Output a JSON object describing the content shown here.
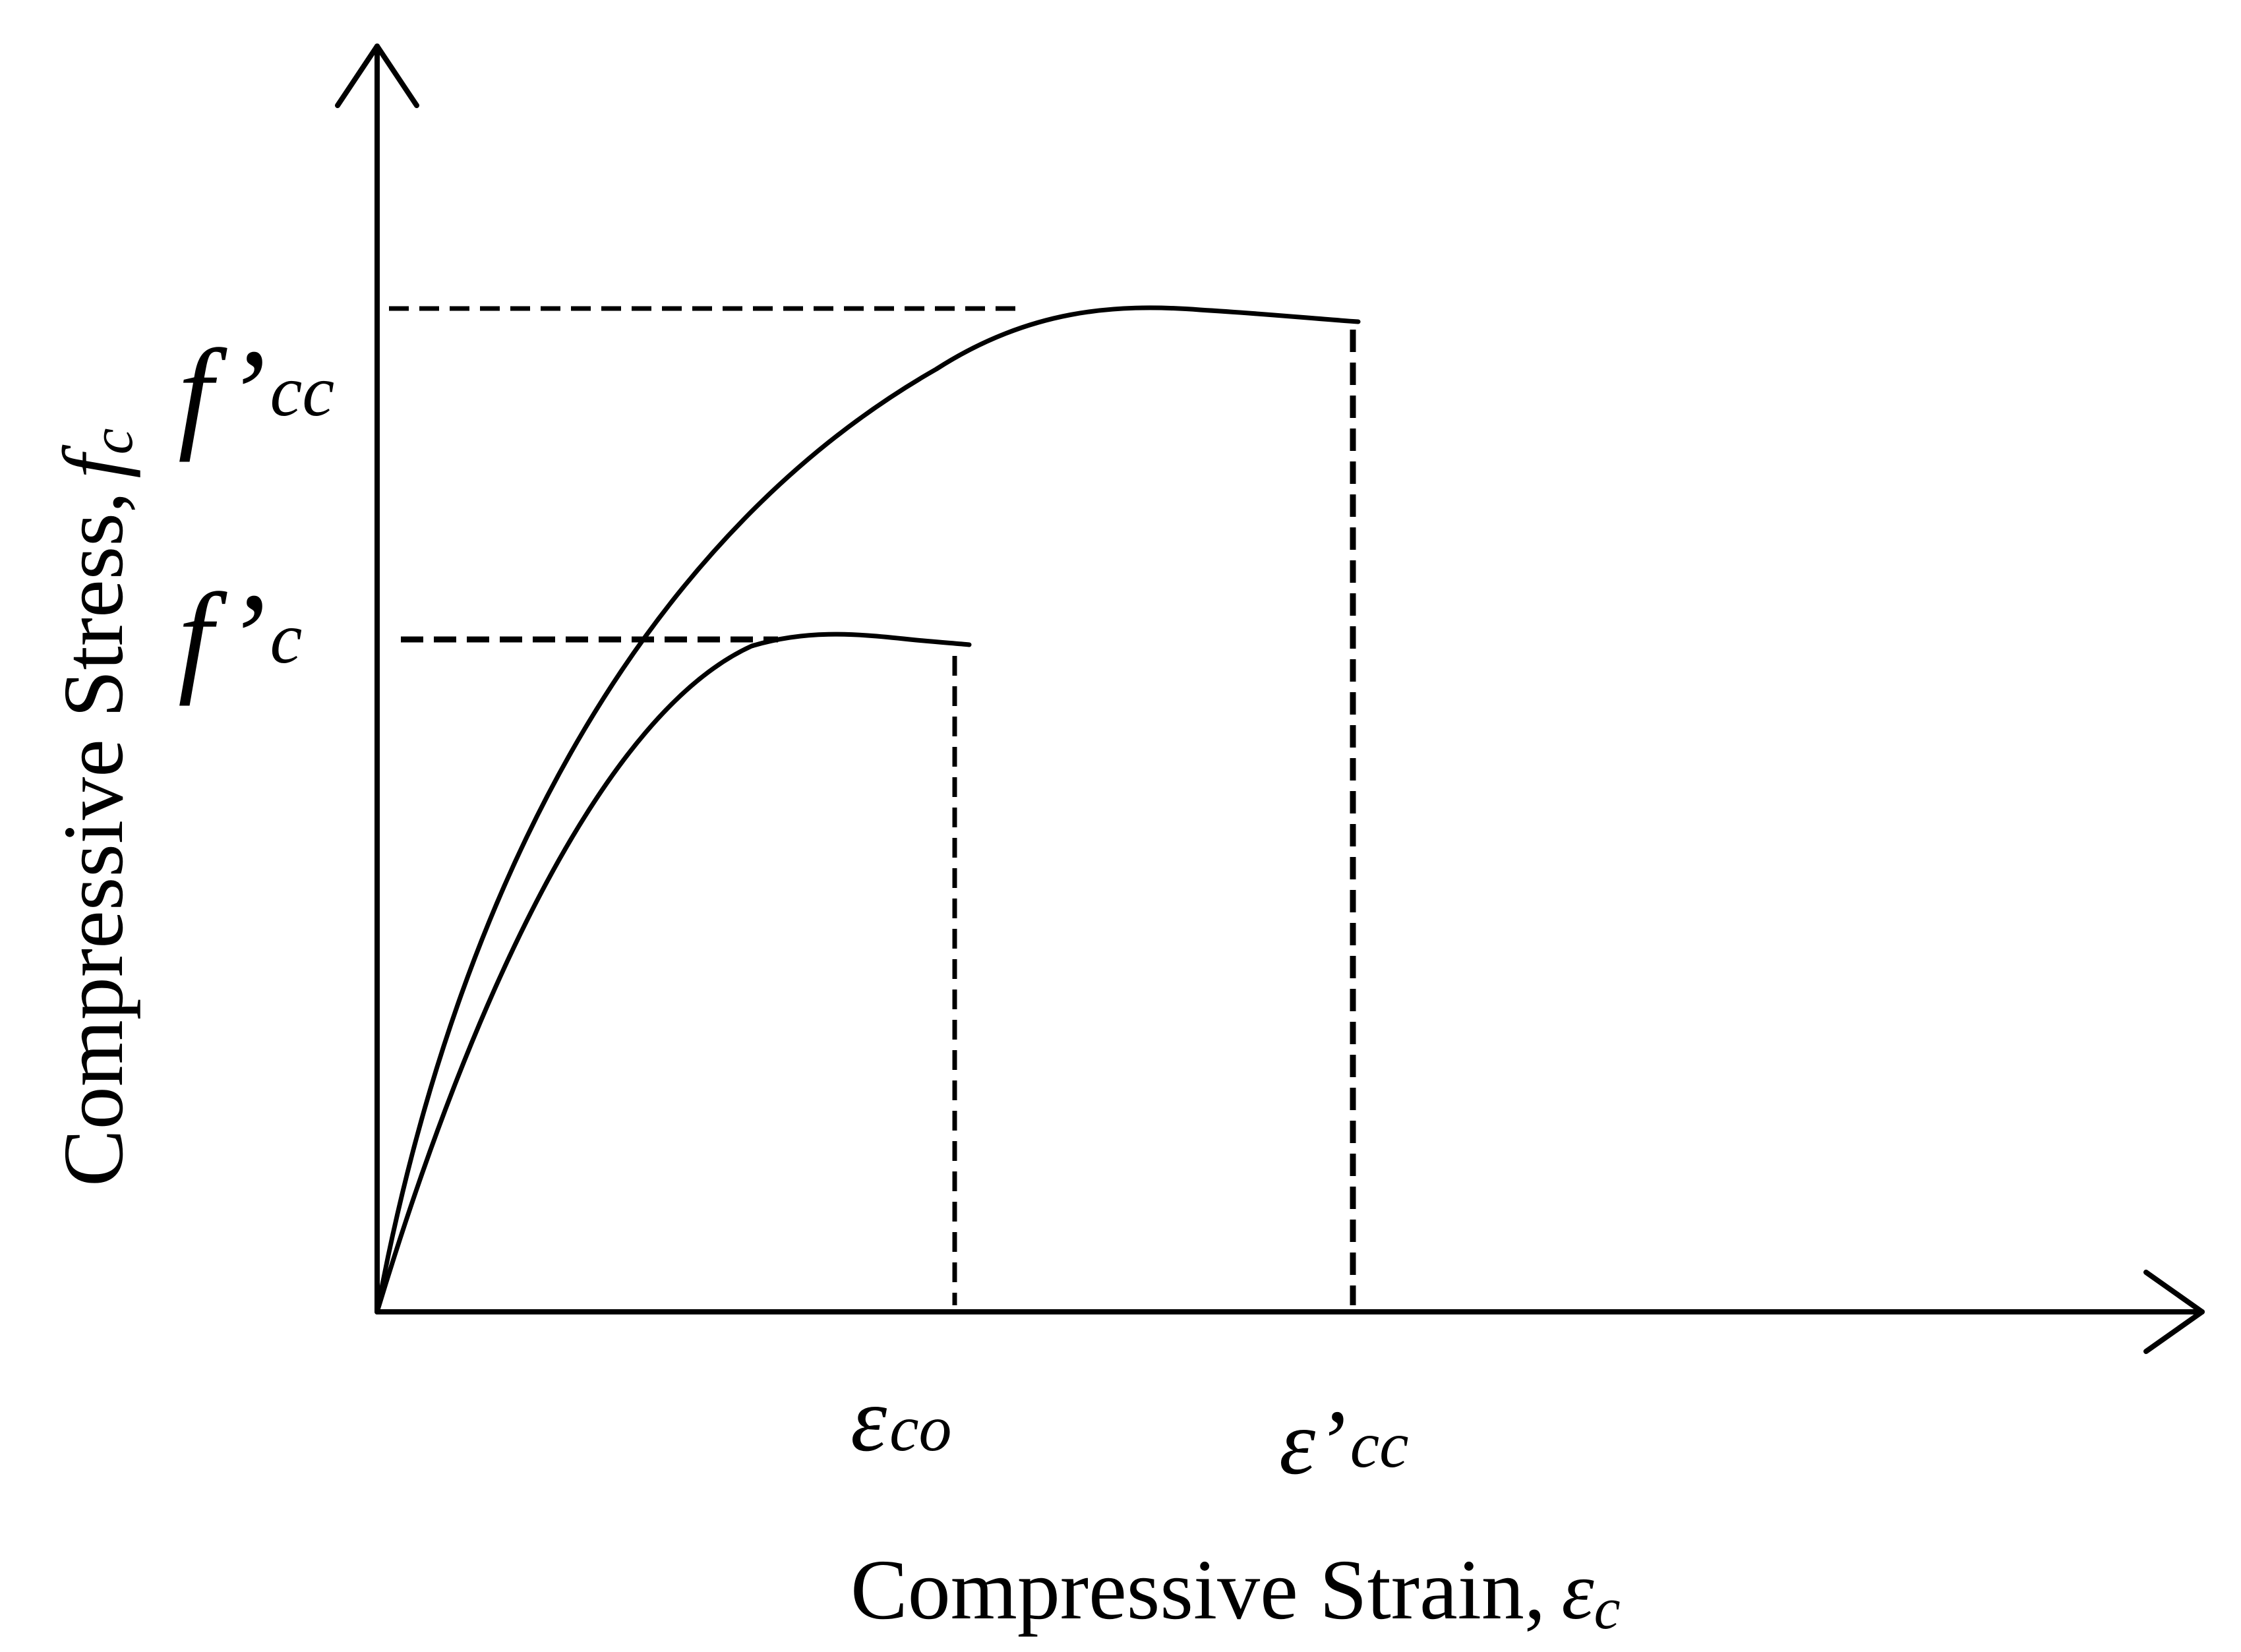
{
  "x_axis": {
    "title": "Compressive Strain,",
    "symbol": "ε",
    "subscript": "c"
  },
  "y_axis": {
    "title": "Compressive Stress,",
    "symbol": "f",
    "subscript": "c"
  },
  "levels": {
    "fcc": {
      "main": "f’",
      "sub": "cc"
    },
    "fc": {
      "main": "f’",
      "sub": "c"
    },
    "eco": {
      "main": "ε",
      "sub": "co"
    },
    "ecc": {
      "main": "ε’",
      "sub": "cc"
    }
  }
}
